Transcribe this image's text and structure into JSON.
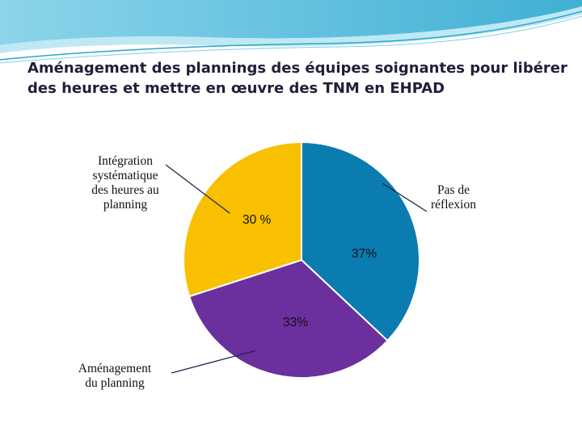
{
  "slide": {
    "title_line1": "Aménagement des plannings des équipes soignantes pour libérer",
    "title_line2": "des heures et mettre en œuvre des TNM en EHPAD"
  },
  "colors": {
    "header_wave": "#3fb6d6",
    "header_wave_light": "#bfe8f3"
  },
  "chart_data": {
    "type": "pie",
    "start_angle_deg": 0,
    "direction": "clockwise",
    "slices": [
      {
        "label": "Pas de réflexion",
        "label_lines": [
          "Pas de",
          "réflexion"
        ],
        "value": 37,
        "value_label": "37%",
        "color": "#0b7cb0"
      },
      {
        "label": "Aménagement du planning",
        "label_lines": [
          "Aménagement",
          "du planning"
        ],
        "value": 33,
        "value_label": "33%",
        "color": "#6b2f9e"
      },
      {
        "label": "Intégration systématique des heures au planning",
        "label_lines": [
          "Intégration",
          "systématique",
          "des heures au",
          "planning"
        ],
        "value": 30,
        "value_label": "30 %",
        "color": "#f8c000"
      }
    ]
  }
}
